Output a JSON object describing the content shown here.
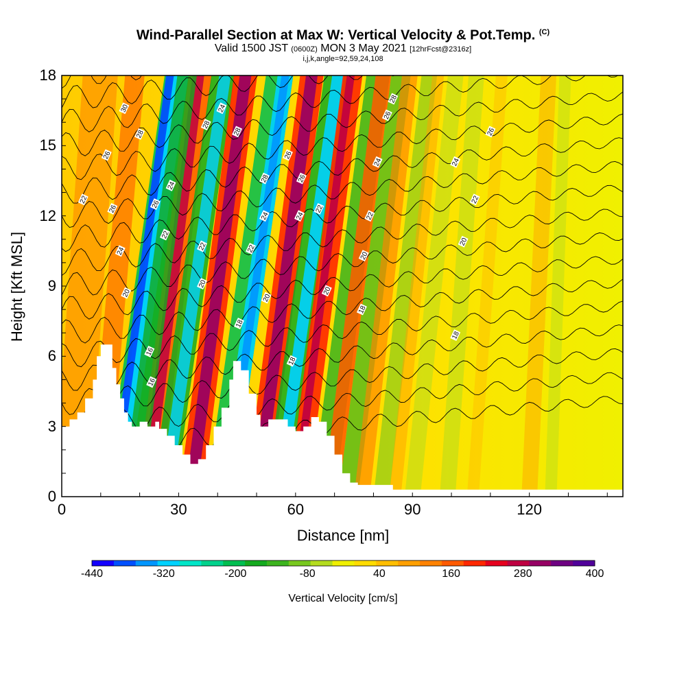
{
  "title": {
    "main": "Wind-Parallel Section at Max W: Vertical Velocity & Pot.Temp.",
    "copyright": "(C)",
    "valid_prefix": "Valid 1500 JST",
    "valid_utc": "(0600Z)",
    "valid_date": "MON 3 May 2021",
    "forecast": "[12hrFcst@2316z]",
    "indices": "i,j,k,angle=92,59,24,108"
  },
  "chart_data": {
    "type": "heatmap",
    "xlabel": "Distance [nm]",
    "ylabel": "Height [Kft MSL]",
    "xlim": [
      0,
      144
    ],
    "ylim": [
      0,
      18
    ],
    "x_ticks": [
      "0",
      "30",
      "60",
      "90",
      "120"
    ],
    "x_tick_values": [
      0,
      30,
      60,
      90,
      120
    ],
    "y_ticks": [
      "0",
      "3",
      "6",
      "9",
      "12",
      "15",
      "18"
    ],
    "y_tick_values": [
      0,
      3,
      6,
      9,
      12,
      15,
      18
    ],
    "colorbar": {
      "label": "Vertical Velocity [cm/s]",
      "tick_labels": [
        "-440",
        "-320",
        "-200",
        "-80",
        "40",
        "160",
        "280",
        "400"
      ],
      "tick_values": [
        -440,
        -320,
        -200,
        -80,
        40,
        160,
        280,
        400
      ],
      "colors": [
        "#1400ff",
        "#0050ff",
        "#0096ff",
        "#00d2ff",
        "#00e6c8",
        "#00d28c",
        "#00be50",
        "#14aa1e",
        "#3cb41e",
        "#78c81e",
        "#b4dc1e",
        "#f0f000",
        "#ffdc00",
        "#ffbe00",
        "#ffa000",
        "#ff8200",
        "#ff5a00",
        "#ff2800",
        "#e6001e",
        "#be0041",
        "#960064",
        "#6e0082",
        "#50009a"
      ]
    },
    "contour_field": "Potential Temperature",
    "contour_labels": [
      {
        "text": "30",
        "x": 16,
        "y": 16.6
      },
      {
        "text": "28",
        "x": 20,
        "y": 15.5
      },
      {
        "text": "26",
        "x": 11.5,
        "y": 14.6
      },
      {
        "text": "22",
        "x": 5.5,
        "y": 12.7
      },
      {
        "text": "26",
        "x": 13,
        "y": 12.3
      },
      {
        "text": "26",
        "x": 24,
        "y": 12.5
      },
      {
        "text": "24",
        "x": 28,
        "y": 13.3
      },
      {
        "text": "22",
        "x": 26.5,
        "y": 11.2
      },
      {
        "text": "24",
        "x": 15,
        "y": 10.5
      },
      {
        "text": "20",
        "x": 16.5,
        "y": 8.7
      },
      {
        "text": "16",
        "x": 22.5,
        "y": 6.2
      },
      {
        "text": "16",
        "x": 23,
        "y": 4.9
      },
      {
        "text": "28",
        "x": 37,
        "y": 15.9
      },
      {
        "text": "24",
        "x": 41,
        "y": 16.6
      },
      {
        "text": "28",
        "x": 45,
        "y": 15.6
      },
      {
        "text": "22",
        "x": 36,
        "y": 10.7
      },
      {
        "text": "20",
        "x": 36,
        "y": 9.1
      },
      {
        "text": "28",
        "x": 52,
        "y": 13.6
      },
      {
        "text": "24",
        "x": 52,
        "y": 12.0
      },
      {
        "text": "22",
        "x": 48.5,
        "y": 10.6
      },
      {
        "text": "20",
        "x": 52.5,
        "y": 8.5
      },
      {
        "text": "18",
        "x": 45.5,
        "y": 7.4
      },
      {
        "text": "26",
        "x": 58,
        "y": 14.6
      },
      {
        "text": "26",
        "x": 61.5,
        "y": 13.6
      },
      {
        "text": "24",
        "x": 61,
        "y": 12.0
      },
      {
        "text": "22",
        "x": 66,
        "y": 12.3
      },
      {
        "text": "20",
        "x": 68,
        "y": 8.8
      },
      {
        "text": "18",
        "x": 59,
        "y": 5.8
      },
      {
        "text": "28",
        "x": 85,
        "y": 17.0
      },
      {
        "text": "26",
        "x": 83.5,
        "y": 16.3
      },
      {
        "text": "24",
        "x": 81,
        "y": 14.3
      },
      {
        "text": "22",
        "x": 79,
        "y": 12.0
      },
      {
        "text": "20",
        "x": 77.5,
        "y": 10.3
      },
      {
        "text": "18",
        "x": 77,
        "y": 8.0
      },
      {
        "text": "26",
        "x": 110,
        "y": 15.6
      },
      {
        "text": "24",
        "x": 101,
        "y": 14.3
      },
      {
        "text": "22",
        "x": 106,
        "y": 12.7
      },
      {
        "text": "20",
        "x": 103,
        "y": 10.9
      },
      {
        "text": "18",
        "x": 101,
        "y": 6.9
      }
    ]
  }
}
